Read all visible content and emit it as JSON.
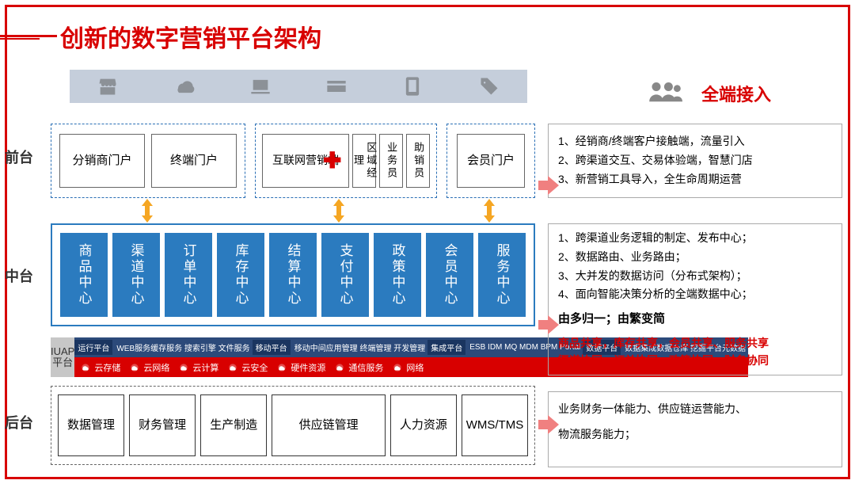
{
  "title": "创新的数字营销平台架构",
  "rightTitle": "全端接入",
  "rowLabels": {
    "front": "前台",
    "mid": "中台",
    "back": "后台"
  },
  "iconBar": [
    "store",
    "cloud-cart",
    "laptop",
    "card",
    "tablet",
    "tag"
  ],
  "front": {
    "group1": [
      "分销商门户",
      "终端门户"
    ],
    "group2": [
      "互联网营销端",
      "区域经理",
      "业务员",
      "助销员"
    ],
    "group3": [
      "会员门户"
    ]
  },
  "mid": [
    "商品中心",
    "渠道中心",
    "订单中心",
    "库存中心",
    "结算中心",
    "支付中心",
    "政策中心",
    "会员中心",
    "服务中心"
  ],
  "iuap": {
    "label": "IUAP平台",
    "topGroups": [
      {
        "hd": "运行平台",
        "items": "WEB服务缓存服务 搜索引擎 文件服务"
      },
      {
        "hd": "移动平台",
        "items": "移动中间应用管理 终端管理 开发管理"
      },
      {
        "hd": "集成平台",
        "items": "ESB IDM MQ MDM BPM Portal"
      },
      {
        "hd": "数据平台",
        "items": "数据集成数据仓库 挖掘平台元数据"
      }
    ],
    "bottom": [
      "云存储",
      "云网络",
      "云计算",
      "云安全",
      "硬件资源",
      "通信服务",
      "网络"
    ]
  },
  "back": [
    "数据管理",
    "财务管理",
    "生产制造",
    "供应链管理",
    "人力资源",
    "WMS/TMS"
  ],
  "desc1": [
    "1、经销商/终端客户接触端，流量引入",
    "2、跨渠道交互、交易体验端，智慧门店",
    "3、新营销工具导入，全生命周期运营"
  ],
  "desc2": {
    "lines": [
      "1、跨渠道业务逻辑的制定、发布中心；",
      "2、数据路由、业务路由；",
      "3、大并发的数据访问（分布式架构）；",
      "4、面向智能决策分析的全端数据中心；"
    ],
    "bold": "由多归一；由繁变简",
    "red": [
      "商品共享，库存共享，会员共享、服务共享",
      "渠道协同，订单协同，政策协同、财务协同"
    ]
  },
  "desc3": [
    "业务财务一体能力、供应链运营能力、",
    "物流服务能力；"
  ],
  "colors": {
    "red": "#d80000",
    "blue": "#2b7bbf",
    "darkblue": "#2c4a7a",
    "gray": "#b7b7b7"
  }
}
